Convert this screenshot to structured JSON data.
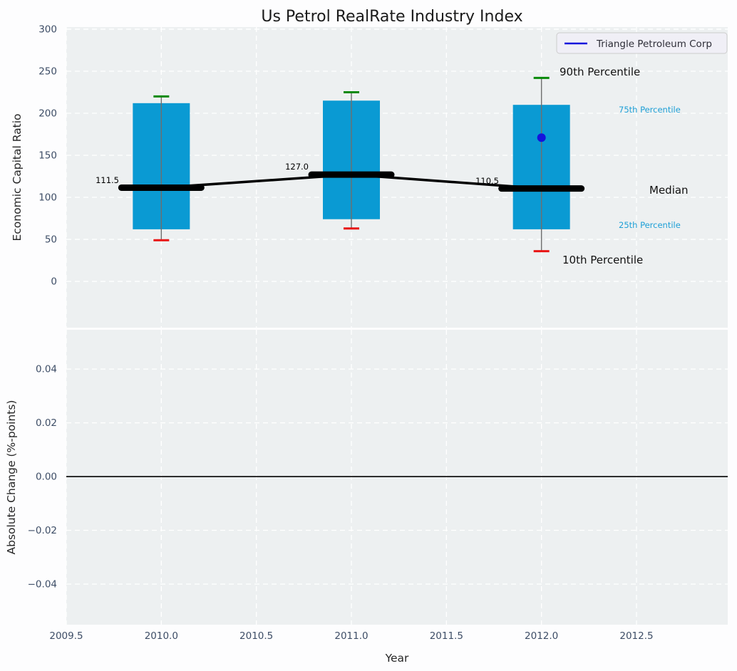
{
  "title": "Us Petrol RealRate Industry Index",
  "colors": {
    "box": "#0a9ad3",
    "whisker": "#6e6e6e",
    "cap_90th": "#0a8a0a",
    "cap_10th": "#e81414",
    "median_line": "#000000",
    "company": "#1414dc",
    "percentile_text": "#1d9fd6",
    "axes_bg": "#edf0f1",
    "grid": "#ffffff",
    "tick_label": "#3d4d66",
    "zero_line": "#000000",
    "figure_bg": "#fdfdfe",
    "legend_bg": "#f0eff6",
    "legend_border": "#cccccc"
  },
  "chart_data": [
    {
      "type": "box",
      "panel": "top",
      "title": "Us Petrol RealRate Industry Index",
      "xlabel": "Year",
      "ylabel": "Economic Capital Ratio",
      "x": [
        2010,
        2011,
        2012
      ],
      "series": [
        {
          "name": "90th Percentile",
          "values": [
            220,
            225,
            242
          ]
        },
        {
          "name": "75th Percentile",
          "values": [
            212,
            215,
            210
          ]
        },
        {
          "name": "Median",
          "values": [
            111.5,
            127.0,
            110.5
          ]
        },
        {
          "name": "25th Percentile",
          "values": [
            62,
            74,
            62
          ]
        },
        {
          "name": "10th Percentile",
          "values": [
            49,
            63,
            36
          ]
        }
      ],
      "median_labels": [
        "111.5",
        "127.0",
        "110.5"
      ],
      "company": {
        "name": "Triangle Petroleum Corp",
        "x": [
          2012
        ],
        "values": [
          171
        ]
      },
      "annotations": {
        "p90": "90th Percentile",
        "p75": "75th Percentile",
        "median": "Median",
        "p25": "25th Percentile",
        "p10": "10th Percentile"
      },
      "legend": {
        "label": "Triangle Petroleum Corp",
        "position": "upper right"
      },
      "xlim": [
        2009.5,
        2012.98
      ],
      "ylim": [
        -55,
        302.5
      ],
      "xticks": [
        2009.5,
        2010,
        2010.5,
        2011,
        2011.5,
        2012,
        2012.5
      ],
      "xtick_labels": [
        "2009.5",
        "2010.0",
        "2010.5",
        "2011.0",
        "2011.5",
        "2012.0",
        "2012.5"
      ],
      "yticks": [
        0,
        50,
        100,
        150,
        200,
        250,
        300
      ],
      "ytick_labels": [
        "0",
        "50",
        "100",
        "150",
        "200",
        "250",
        "300"
      ],
      "grid": true
    },
    {
      "type": "line",
      "panel": "bottom",
      "ylabel": "Absolute Change (%-points)",
      "x": [],
      "values": [],
      "zero_line": 0,
      "ylim": [
        -0.0551,
        0.0546
      ],
      "yticks": [
        0.04,
        0.02,
        0,
        -0.02,
        -0.04
      ],
      "ytick_labels": [
        "0.04",
        "0.02",
        "0.00",
        "−0.02",
        "−0.04"
      ],
      "grid": true
    }
  ]
}
